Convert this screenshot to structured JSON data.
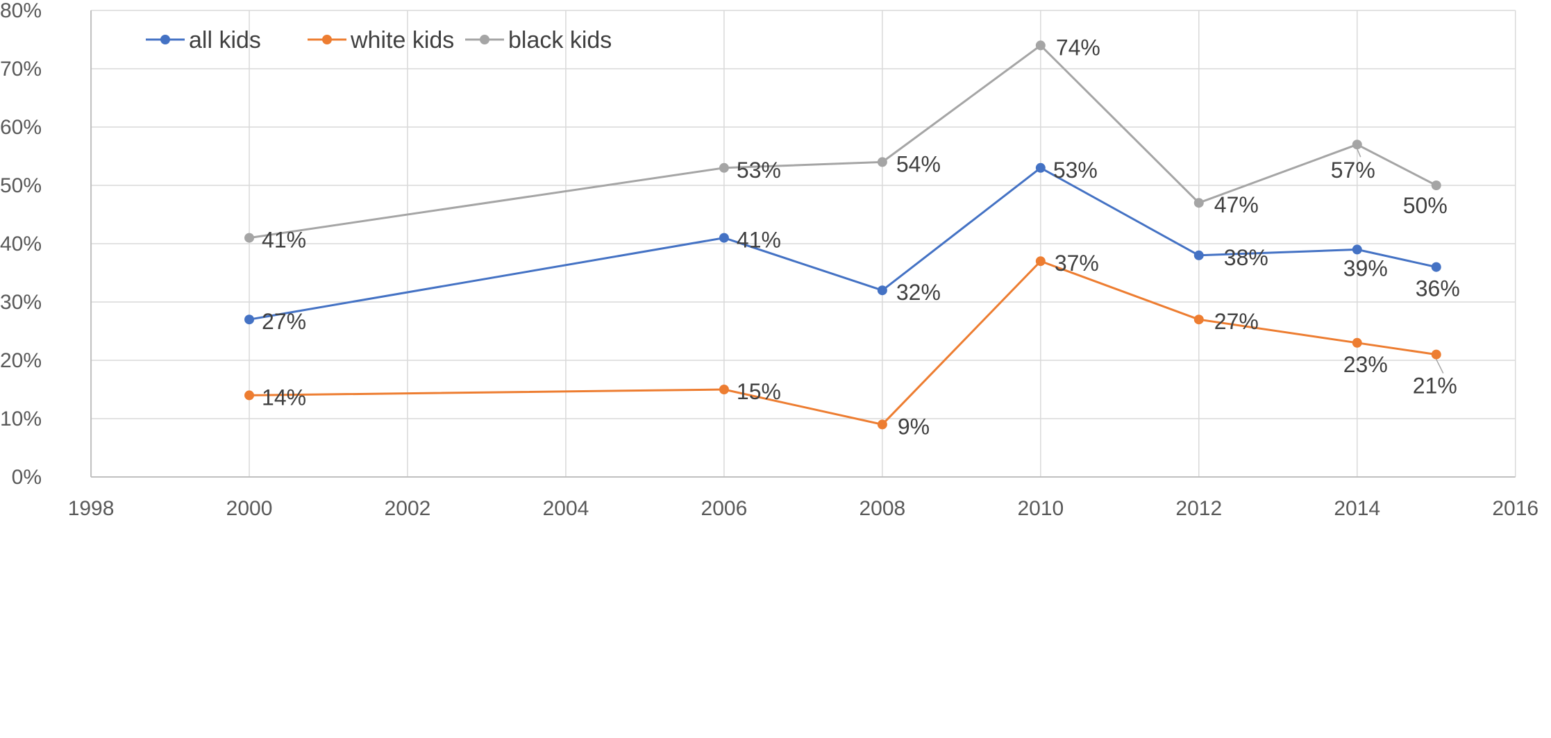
{
  "chart_data": {
    "type": "line",
    "title": "",
    "xlabel": "",
    "ylabel": "",
    "xlim": [
      1998,
      2016
    ],
    "ylim": [
      0,
      80
    ],
    "x_ticks": [
      1998,
      2000,
      2002,
      2004,
      2006,
      2008,
      2010,
      2012,
      2014,
      2016
    ],
    "y_ticks": [
      0,
      10,
      20,
      30,
      40,
      50,
      60,
      70,
      80
    ],
    "x_tick_labels": [
      "1998",
      "2000",
      "2002",
      "2004",
      "2006",
      "2008",
      "2010",
      "2012",
      "2014",
      "2016"
    ],
    "y_tick_labels": [
      "0%",
      "10%",
      "20%",
      "30%",
      "40%",
      "50%",
      "60%",
      "70%",
      "80%"
    ],
    "grid": true,
    "legend_position": "top-left",
    "series": [
      {
        "name": "all kids",
        "color": "#4472c4",
        "points": [
          {
            "x": 2000,
            "y": 27,
            "label": "27%"
          },
          {
            "x": 2006,
            "y": 41,
            "label": "41%"
          },
          {
            "x": 2008,
            "y": 32,
            "label": "32%"
          },
          {
            "x": 2010,
            "y": 53,
            "label": "53%"
          },
          {
            "x": 2012,
            "y": 38,
            "label": "38%"
          },
          {
            "x": 2014,
            "y": 39,
            "label": "39%"
          },
          {
            "x": 2015,
            "y": 36,
            "label": "36%"
          }
        ]
      },
      {
        "name": "white kids",
        "color": "#ed7d31",
        "points": [
          {
            "x": 2000,
            "y": 14,
            "label": "14%"
          },
          {
            "x": 2006,
            "y": 15,
            "label": "15%"
          },
          {
            "x": 2008,
            "y": 9,
            "label": "9%"
          },
          {
            "x": 2010,
            "y": 37,
            "label": "37%"
          },
          {
            "x": 2012,
            "y": 27,
            "label": "27%"
          },
          {
            "x": 2014,
            "y": 23,
            "label": "23%"
          },
          {
            "x": 2015,
            "y": 21,
            "label": "21%"
          }
        ]
      },
      {
        "name": "black kids",
        "color": "#a5a5a5",
        "points": [
          {
            "x": 2000,
            "y": 41,
            "label": "41%"
          },
          {
            "x": 2006,
            "y": 53,
            "label": "53%"
          },
          {
            "x": 2008,
            "y": 54,
            "label": "54%"
          },
          {
            "x": 2010,
            "y": 74,
            "label": "74%"
          },
          {
            "x": 2012,
            "y": 47,
            "label": "47%"
          },
          {
            "x": 2014,
            "y": 57,
            "label": "57%"
          },
          {
            "x": 2015,
            "y": 50,
            "label": "50%"
          }
        ]
      }
    ]
  }
}
